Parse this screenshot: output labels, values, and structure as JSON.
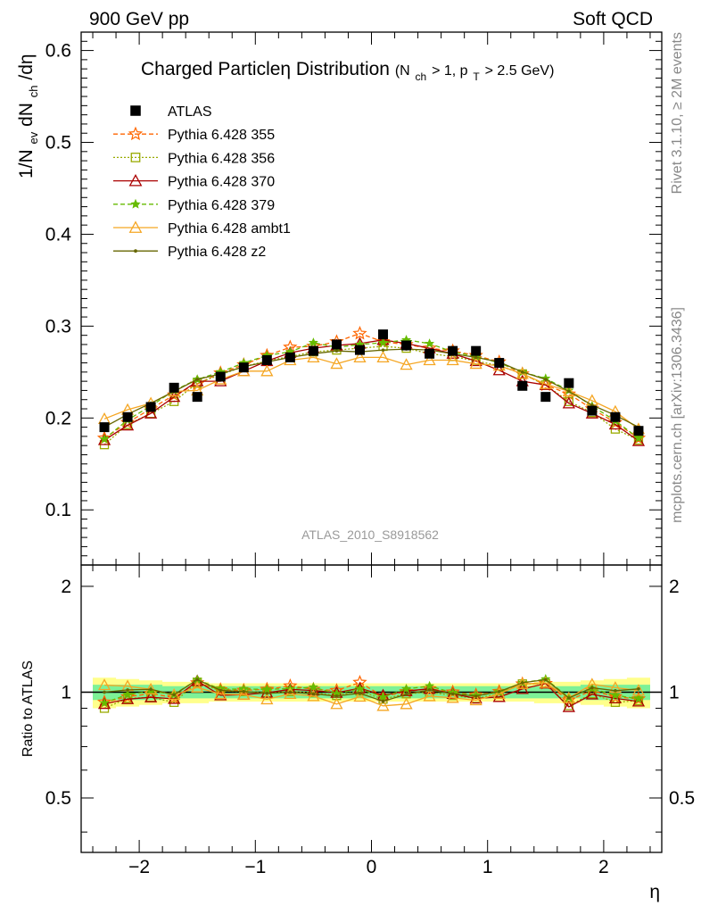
{
  "header": {
    "left": "900 GeV pp",
    "right": "Soft QCD"
  },
  "side_labels": {
    "rivet": "Rivet 3.1.10, ≥ 2M events",
    "mcplots": "mcplots.cern.ch [arXiv:1306.3436]"
  },
  "watermark": "ATLAS_2010_S8918562",
  "chart_data": [
    {
      "type": "scatter",
      "title": {
        "main": "Charged Particleη Distribution",
        "cond_open": "(N",
        "cond_sub1": "ch",
        "cond_mid": " > 1, p",
        "cond_sub2": "T",
        "cond_close": " > 2.5 GeV)"
      },
      "ylabel": {
        "a": "1/N",
        "a_sub": "ev",
        "b": " dN",
        "b_sub": "ch",
        "c": "/dη"
      },
      "xlabel": "η",
      "xlim": [
        -2.5,
        2.5
      ],
      "ylim": [
        0.04,
        0.62
      ],
      "yticks": [
        0.1,
        0.2,
        0.3,
        0.4,
        0.5,
        0.6
      ],
      "yticklabels": [
        "0.1",
        "0.2",
        "0.3",
        "0.4",
        "0.5",
        "0.6"
      ],
      "x": [
        -2.3,
        -2.1,
        -1.9,
        -1.7,
        -1.5,
        -1.3,
        -1.1,
        -0.9,
        -0.7,
        -0.5,
        -0.3,
        -0.1,
        0.1,
        0.3,
        0.5,
        0.7,
        0.9,
        1.1,
        1.3,
        1.5,
        1.7,
        1.9,
        2.1,
        2.3
      ],
      "series": [
        {
          "name": "ATLAS",
          "color": "#000000",
          "marker": "square-filled",
          "line": "none",
          "values": [
            0.19,
            0.201,
            0.212,
            0.233,
            0.223,
            0.245,
            0.255,
            0.263,
            0.266,
            0.273,
            0.28,
            0.274,
            0.291,
            0.279,
            0.27,
            0.273,
            0.273,
            0.26,
            0.235,
            0.223,
            0.238,
            0.208,
            0.201,
            0.186
          ]
        },
        {
          "name": "Pythia 6.428 355",
          "color": "#ff6600",
          "marker": "star-open",
          "line": "dashed",
          "values": [
            0.178,
            0.195,
            0.21,
            0.225,
            0.237,
            0.249,
            0.258,
            0.268,
            0.277,
            0.278,
            0.283,
            0.292,
            0.283,
            0.28,
            0.276,
            0.273,
            0.268,
            0.261,
            0.248,
            0.236,
            0.226,
            0.21,
            0.195,
            0.178
          ]
        },
        {
          "name": "Pythia 6.428 356",
          "color": "#99aa00",
          "marker": "square-open",
          "line": "dotted",
          "values": [
            0.171,
            0.193,
            0.205,
            0.218,
            0.238,
            0.247,
            0.256,
            0.262,
            0.267,
            0.272,
            0.274,
            0.276,
            0.278,
            0.276,
            0.27,
            0.267,
            0.262,
            0.257,
            0.248,
            0.236,
            0.218,
            0.206,
            0.188,
            0.176
          ]
        },
        {
          "name": "Pythia 6.428 370",
          "color": "#aa0000",
          "marker": "triangle-open",
          "line": "solid",
          "values": [
            0.176,
            0.192,
            0.205,
            0.223,
            0.24,
            0.24,
            0.251,
            0.262,
            0.271,
            0.276,
            0.279,
            0.281,
            0.285,
            0.281,
            0.276,
            0.27,
            0.262,
            0.252,
            0.24,
            0.236,
            0.216,
            0.205,
            0.193,
            0.175
          ]
        },
        {
          "name": "Pythia 6.428 379",
          "color": "#66bb00",
          "marker": "star-filled",
          "line": "dashed",
          "values": [
            0.177,
            0.198,
            0.213,
            0.23,
            0.242,
            0.25,
            0.26,
            0.268,
            0.272,
            0.282,
            0.277,
            0.28,
            0.282,
            0.285,
            0.281,
            0.272,
            0.267,
            0.26,
            0.25,
            0.243,
            0.23,
            0.213,
            0.197,
            0.178
          ]
        },
        {
          "name": "Pythia 6.428 ambt1",
          "color": "#f5a623",
          "marker": "triangle-open",
          "line": "solid",
          "values": [
            0.199,
            0.209,
            0.216,
            0.229,
            0.23,
            0.242,
            0.251,
            0.251,
            0.263,
            0.266,
            0.259,
            0.266,
            0.266,
            0.258,
            0.263,
            0.263,
            0.259,
            0.257,
            0.248,
            0.237,
            0.229,
            0.219,
            0.207,
            0.188
          ]
        },
        {
          "name": "Pythia 6.428 z2",
          "color": "#666600",
          "marker": "dot",
          "line": "solid",
          "values": [
            0.19,
            0.204,
            0.216,
            0.229,
            0.242,
            0.248,
            0.256,
            0.261,
            0.266,
            0.27,
            0.273,
            0.272,
            0.274,
            0.275,
            0.274,
            0.27,
            0.266,
            0.261,
            0.25,
            0.242,
            0.229,
            0.214,
            0.203,
            0.19
          ]
        }
      ],
      "legend": "top-left",
      "grid": false
    },
    {
      "type": "line",
      "ylabel": "Ratio to ATLAS",
      "xlabel": "η",
      "xlim": [
        -2.5,
        2.5
      ],
      "ylim": [
        0.35,
        2.3
      ],
      "yscale": "log",
      "yticks": [
        0.5,
        1,
        2
      ],
      "yticklabels": [
        "0.5",
        "1",
        "2"
      ],
      "xticks": [
        -2,
        -1,
        0,
        1,
        2
      ],
      "xticklabels": [
        "−2",
        "−1",
        "0",
        "1",
        "2"
      ],
      "band_inner": [
        0.05,
        0.05,
        0.05,
        0.04,
        0.04,
        0.04,
        0.04,
        0.04,
        0.04,
        0.04,
        0.04,
        0.04,
        0.04,
        0.04,
        0.04,
        0.04,
        0.04,
        0.04,
        0.04,
        0.04,
        0.04,
        0.05,
        0.05,
        0.05
      ],
      "band_outer": [
        0.1,
        0.09,
        0.08,
        0.07,
        0.07,
        0.06,
        0.06,
        0.06,
        0.06,
        0.06,
        0.06,
        0.06,
        0.06,
        0.06,
        0.06,
        0.06,
        0.06,
        0.06,
        0.06,
        0.07,
        0.07,
        0.08,
        0.09,
        0.1
      ],
      "band_colors": {
        "inner": "#66ee99",
        "outer": "#ffff66"
      },
      "reference_line": 1
    }
  ]
}
